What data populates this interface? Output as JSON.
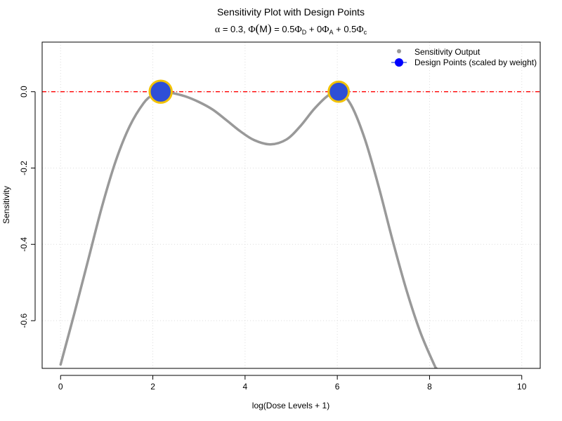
{
  "chart_data": {
    "type": "line",
    "title": "Sensitivity Plot with Design Points",
    "subtitle": {
      "alpha_symbol": "α",
      "alpha_eq": " = 0.3, ",
      "phi_symbol": "Φ",
      "phi_paren_open": "(",
      "phi_arg": "M",
      "phi_paren_close": ")",
      "eq_rest": " = 0.5",
      "term_D_symbol": "Φ",
      "term_D_sub": "D",
      "plus1": " + 0",
      "term_A_symbol": "Φ",
      "term_A_sub": "A",
      "plus2": " + 0.5",
      "term_c_symbol": "Φ",
      "term_c_sub": "c"
    },
    "xlabel": "log(Dose Levels + 1)",
    "ylabel": "Sensitivity",
    "xlim": [
      -0.4,
      10.4
    ],
    "ylim": [
      -0.725,
      0.13
    ],
    "xticks": [
      0,
      2,
      4,
      6,
      8,
      10
    ],
    "xtick_labels": [
      "0",
      "2",
      "4",
      "6",
      "8",
      "10"
    ],
    "yticks": [
      0.0,
      -0.2,
      -0.4,
      -0.6
    ],
    "ytick_labels": [
      "0.0",
      "-0.2",
      "-0.4",
      "-0.6"
    ],
    "grid": true,
    "reference_line": {
      "y": 0.0,
      "color": "#ff0000",
      "style": "dashed"
    },
    "series": [
      {
        "name": "Sensitivity Output",
        "color": "#999999",
        "x": [
          0.0,
          0.3,
          0.6,
          0.9,
          1.2,
          1.5,
          1.8,
          2.0,
          2.17,
          2.4,
          2.7,
          3.0,
          3.3,
          3.6,
          3.9,
          4.2,
          4.55,
          4.9,
          5.2,
          5.5,
          5.8,
          6.03,
          6.3,
          6.6,
          6.9,
          7.2,
          7.5,
          7.8,
          8.1,
          8.15
        ],
        "y": [
          -0.715,
          -0.58,
          -0.44,
          -0.3,
          -0.18,
          -0.09,
          -0.03,
          -0.008,
          0.0,
          -0.003,
          -0.012,
          -0.027,
          -0.047,
          -0.075,
          -0.104,
          -0.127,
          -0.138,
          -0.125,
          -0.09,
          -0.045,
          -0.01,
          0.0,
          -0.035,
          -0.125,
          -0.25,
          -0.39,
          -0.52,
          -0.63,
          -0.715,
          -0.725
        ]
      },
      {
        "name": "Design Points (scaled by weight)",
        "type": "scatter",
        "color": "#2e4fd6",
        "edge_color": "#f2c200",
        "x": [
          2.17,
          6.03
        ],
        "y": [
          0.0,
          0.0
        ],
        "weights": [
          0.55,
          0.45
        ]
      }
    ],
    "legend": {
      "position": "top-right",
      "items": [
        {
          "label": "Sensitivity Output",
          "marker": "gray-dot"
        },
        {
          "label": "Design Points (scaled by weight)",
          "marker": "blue-point-line"
        }
      ]
    }
  }
}
